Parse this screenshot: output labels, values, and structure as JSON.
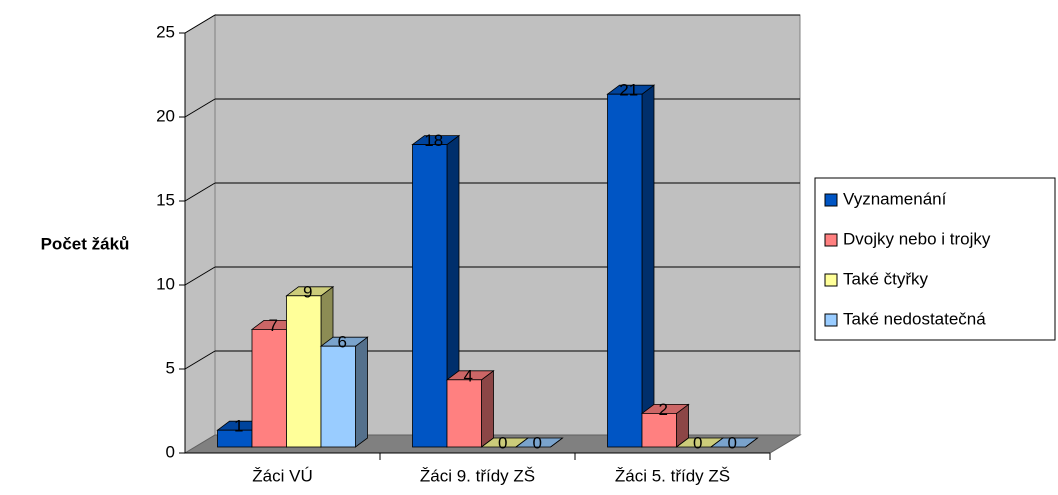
{
  "chart_data": {
    "type": "bar3d",
    "y_label": "Počet žáků",
    "categories": [
      "Žáci VÚ",
      "Žáci 9. třídy ZŠ",
      "Žáci 5. třídy ZŠ"
    ],
    "series": [
      {
        "name": "Vyznamenání",
        "color": "#0055c4",
        "values": [
          1,
          18,
          21
        ]
      },
      {
        "name": "Dvojky nebo i trojky",
        "color": "#ff8080",
        "values": [
          7,
          4,
          2
        ]
      },
      {
        "name": "Také čtyřky",
        "color": "#ffff99",
        "values": [
          9,
          0,
          0
        ]
      },
      {
        "name": "Také nedostatečná",
        "color": "#99ccff",
        "values": [
          6,
          0,
          0
        ]
      }
    ],
    "ylim": [
      0,
      25
    ],
    "yticks": [
      0,
      5,
      10,
      15,
      20,
      25
    ],
    "grid": true,
    "legend": "right"
  }
}
